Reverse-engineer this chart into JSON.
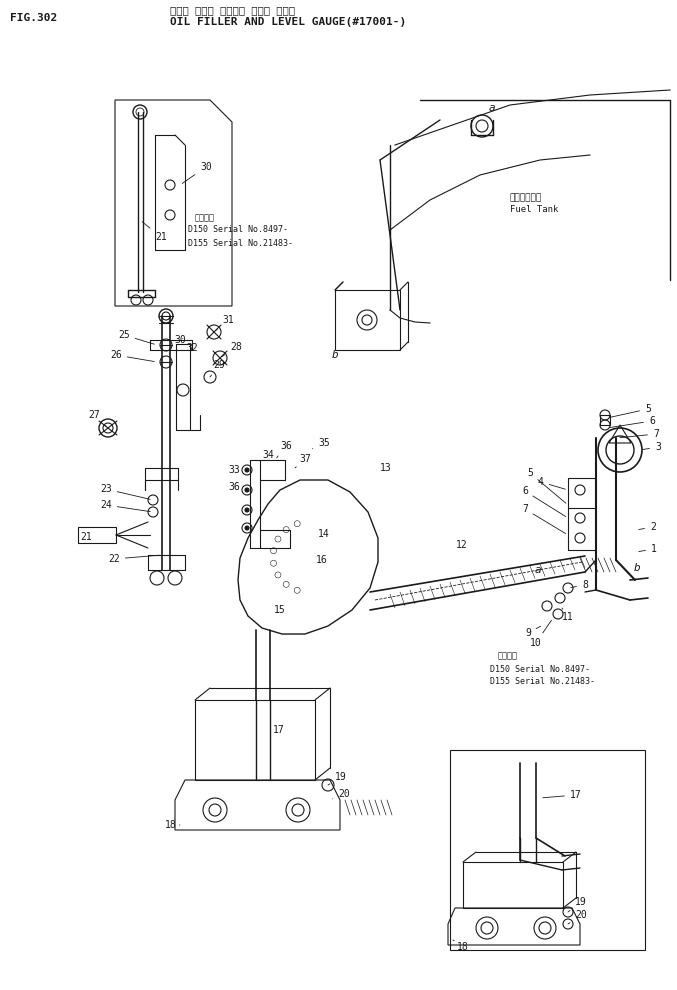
{
  "title_jp": "オイル フィラ オヨビー レベル ゲージ",
  "title_en": "OIL FILLER AND LEVEL GAUGE(#17001-)",
  "fig_num": "FIG.302",
  "bg_color": "#ffffff",
  "line_color": "#1a1a1a",
  "text_color": "#1a1a1a",
  "font_size_title": 8,
  "font_size_label": 6.5,
  "font_size_num": 7
}
